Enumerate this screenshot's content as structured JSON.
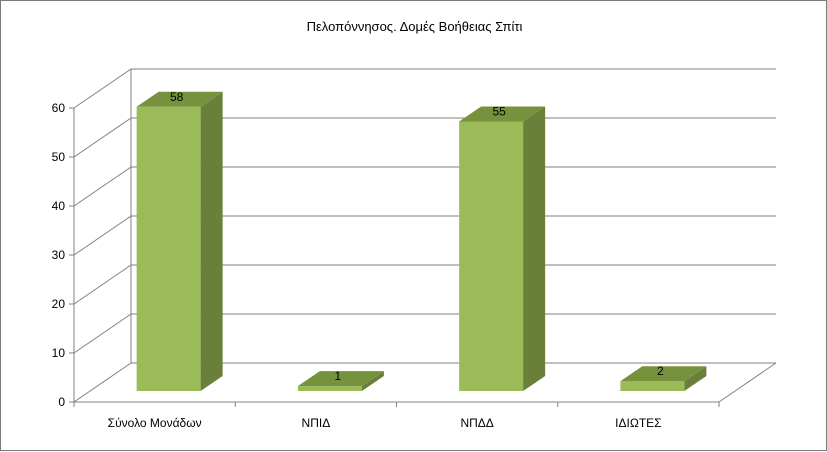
{
  "chart_data": {
    "type": "bar",
    "title": "Πελοπόννησος. Δομές Βοήθειας Σπίτι",
    "categories": [
      "Σύνολο Μονάδων",
      "ΝΠΙΔ",
      "ΝΠΔΔ",
      "ΙΔΙΩΤΕΣ"
    ],
    "values": [
      58,
      1,
      55,
      2
    ],
    "data_labels": [
      "58",
      "1",
      "55",
      "2"
    ],
    "ylim": [
      0,
      60
    ],
    "yticks": [
      0,
      10,
      20,
      30,
      40,
      50,
      60
    ],
    "ytick_labels": [
      "0",
      "10",
      "20",
      "30",
      "40",
      "50",
      "60"
    ],
    "grid": true,
    "legend": "none",
    "style": "3d-column",
    "colors": {
      "bar_front": "#9bbb59",
      "bar_side": "#6a7f3a",
      "bar_top": "#76923c",
      "grid": "#808080"
    }
  }
}
